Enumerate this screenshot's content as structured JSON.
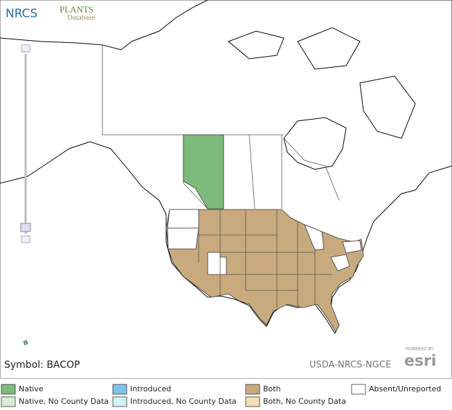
{
  "header": {
    "logo": "NRCS",
    "plants": "PLANTS",
    "database": "Database"
  },
  "map": {
    "symbol": "Symbol: BACOP",
    "credit": "USDA-NRCS-NGCE",
    "powered": "POWERED BY",
    "esri": "esri"
  },
  "legend": [
    {
      "label": "Native",
      "color": "#7dbb7d"
    },
    {
      "label": "Native, No County Data",
      "color": "#d6efd6"
    },
    {
      "label": "Introduced",
      "color": "#7cc3ec"
    },
    {
      "label": "Introduced, No County Data",
      "color": "#cdf3fb"
    },
    {
      "label": "Both",
      "color": "#c8aa7e"
    },
    {
      "label": "Both, No County Data",
      "color": "#f4dfb6"
    },
    {
      "label": "Absent/Unreported",
      "color": "#ffffff"
    }
  ]
}
